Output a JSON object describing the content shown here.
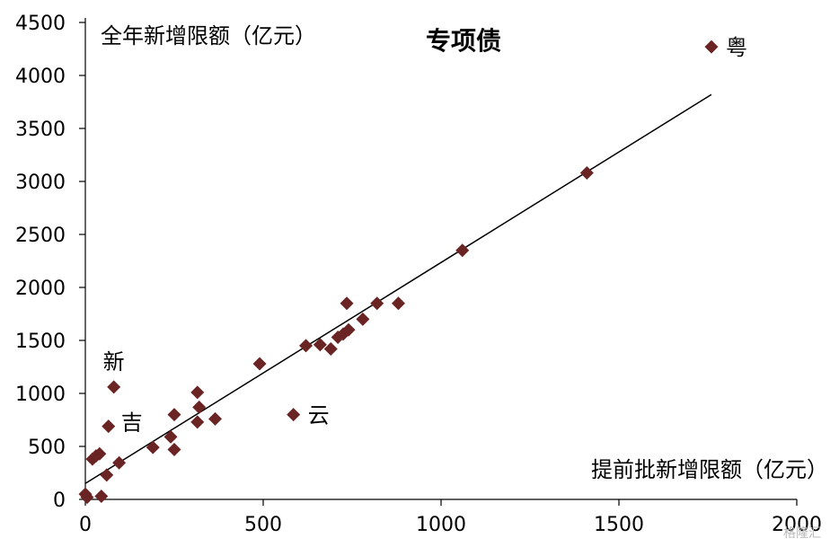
{
  "chart_data": {
    "type": "scatter",
    "title": "专项债",
    "xlabel": "提前批新增限额（亿元）",
    "ylabel": "全年新增限额（亿元）",
    "xlim": [
      0,
      2000
    ],
    "ylim": [
      0,
      4500
    ],
    "xticks": [
      "0",
      "500",
      "1000",
      "1500",
      "2000"
    ],
    "yticks": [
      "0",
      "500",
      "1000",
      "1500",
      "2000",
      "2500",
      "3000",
      "3500",
      "4000",
      "4500"
    ],
    "marker_color": "#6B2424",
    "trendline": {
      "x": [
        0,
        1760
      ],
      "y": [
        150,
        3820
      ]
    },
    "points": [
      {
        "x": 0,
        "y": 50
      },
      {
        "x": 5,
        "y": 20
      },
      {
        "x": 20,
        "y": 380
      },
      {
        "x": 30,
        "y": 410
      },
      {
        "x": 40,
        "y": 430
      },
      {
        "x": 45,
        "y": 30
      },
      {
        "x": 60,
        "y": 230
      },
      {
        "x": 65,
        "y": 690,
        "label": "吉"
      },
      {
        "x": 80,
        "y": 1060,
        "label": "新"
      },
      {
        "x": 95,
        "y": 345
      },
      {
        "x": 190,
        "y": 490
      },
      {
        "x": 240,
        "y": 590
      },
      {
        "x": 250,
        "y": 800
      },
      {
        "x": 250,
        "y": 470
      },
      {
        "x": 315,
        "y": 1010
      },
      {
        "x": 315,
        "y": 730
      },
      {
        "x": 320,
        "y": 870
      },
      {
        "x": 365,
        "y": 760
      },
      {
        "x": 490,
        "y": 1280
      },
      {
        "x": 585,
        "y": 800,
        "label": "云"
      },
      {
        "x": 620,
        "y": 1450
      },
      {
        "x": 660,
        "y": 1460
      },
      {
        "x": 690,
        "y": 1420
      },
      {
        "x": 710,
        "y": 1530
      },
      {
        "x": 725,
        "y": 1560
      },
      {
        "x": 740,
        "y": 1600
      },
      {
        "x": 735,
        "y": 1850
      },
      {
        "x": 780,
        "y": 1700
      },
      {
        "x": 820,
        "y": 1850
      },
      {
        "x": 880,
        "y": 1850
      },
      {
        "x": 1060,
        "y": 2350
      },
      {
        "x": 1410,
        "y": 3080
      },
      {
        "x": 1760,
        "y": 4270,
        "label": "粤"
      }
    ]
  },
  "watermark": "格隆汇"
}
